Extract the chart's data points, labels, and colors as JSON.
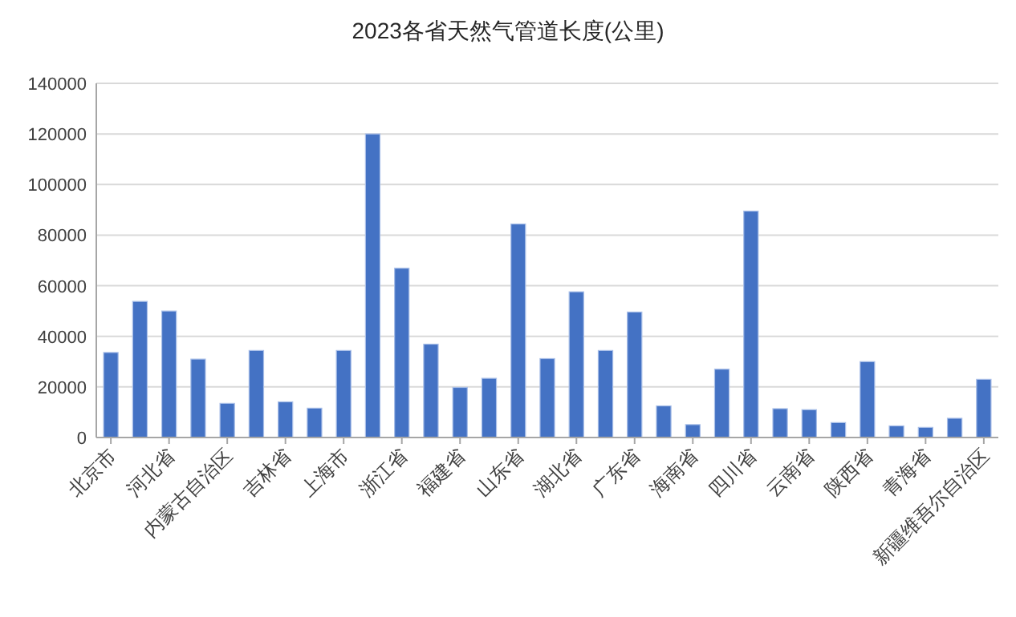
{
  "chart_data": {
    "type": "bar",
    "title": "2023各省天然气管道长度(公里)",
    "categories": [
      "北京市",
      null,
      "河北省",
      null,
      "内蒙古自治区",
      null,
      "吉林省",
      null,
      "上海市",
      null,
      "浙江省",
      null,
      "福建省",
      null,
      "山东省",
      null,
      "湖北省",
      null,
      "广东省",
      null,
      "海南省",
      null,
      "四川省",
      null,
      "云南省",
      null,
      "陕西省",
      null,
      "青海省",
      null,
      "新疆维吾尔自治区"
    ],
    "values": [
      33600,
      53800,
      50000,
      31000,
      13500,
      34400,
      14100,
      11600,
      34400,
      120000,
      66900,
      36900,
      19800,
      23400,
      84400,
      31200,
      57600,
      34400,
      49600,
      12500,
      5100,
      27000,
      89500,
      11400,
      11000,
      5900,
      30000,
      4600,
      4000,
      7600,
      23000
    ],
    "color": "#4472c4",
    "ylim": [
      0,
      140000
    ],
    "yticks": [
      0,
      20000,
      40000,
      60000,
      80000,
      100000,
      120000,
      140000
    ],
    "grid": "y"
  }
}
